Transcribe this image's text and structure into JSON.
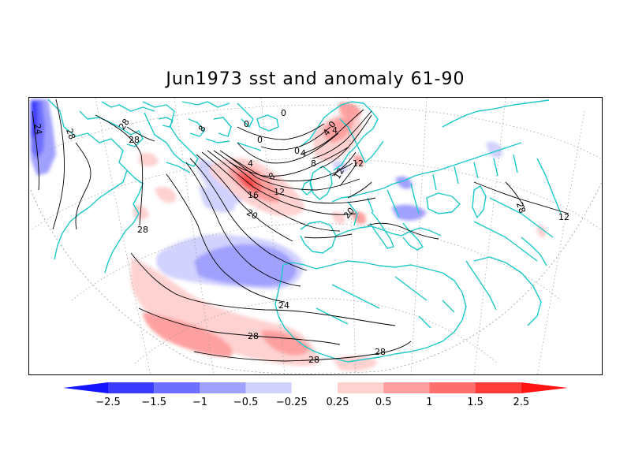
{
  "title": "Jun1973 sst and anomaly 61-90",
  "colors": {
    "frame": "#000000",
    "coastline": "#1ec8c8",
    "contour": "#000000",
    "graticule": "#9a9a9a"
  },
  "contour_labels": [
    "24",
    "28",
    "28",
    "28",
    "28",
    "28",
    "28",
    "28",
    "28",
    "24",
    "20",
    "16",
    "12",
    "12",
    "8",
    "8",
    "8",
    "4",
    "4",
    "4",
    "4",
    "0",
    "0",
    "0",
    "0",
    "0",
    "12",
    "12",
    "20"
  ],
  "colorbar": {
    "bins": [
      {
        "color": "#1414ff"
      },
      {
        "color": "#3c3cff"
      },
      {
        "color": "#6e6eff"
      },
      {
        "color": "#a0a0ff"
      },
      {
        "color": "#d2d2ff"
      },
      {
        "color": "#ffffff"
      },
      {
        "color": "#ffd2d2"
      },
      {
        "color": "#ffa0a0"
      },
      {
        "color": "#ff6e6e"
      },
      {
        "color": "#ff3c3c"
      },
      {
        "color": "#ff1414"
      }
    ],
    "tick_labels": [
      "-2.5",
      "-1.5",
      "-1",
      "-0.5",
      "-0.25",
      "0.25",
      "0.5",
      "1",
      "1.5",
      "2.5"
    ]
  }
}
